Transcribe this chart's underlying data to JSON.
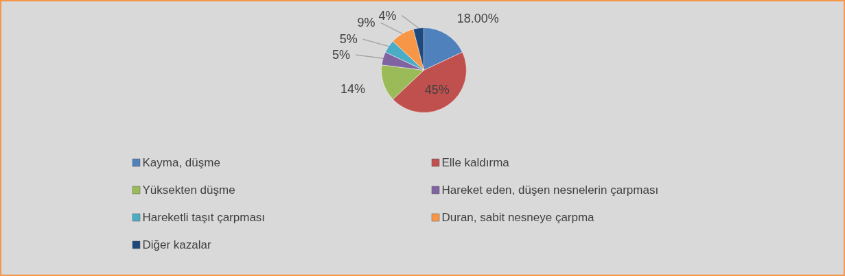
{
  "chart_data": {
    "type": "pie",
    "categories": [
      "Kayma, düşme",
      "Elle kaldırma",
      "Yüksekten düşme",
      "Hareket eden, düşen nesnelerin çarpması",
      "Hareketli taşıt çarpması",
      "Duran, sabit nesneye çarpma",
      "Diğer kazalar"
    ],
    "values": [
      18,
      45,
      14,
      5,
      5,
      9,
      4
    ],
    "colors": [
      "#4f81bd",
      "#c0504d",
      "#9bbb59",
      "#8064a2",
      "#4bacc6",
      "#f79646",
      "#1f497d"
    ],
    "value_labels": [
      "18.00%",
      "45%",
      "14%",
      "5%",
      "5%",
      "9%",
      "4%"
    ],
    "legend": "bottom"
  }
}
